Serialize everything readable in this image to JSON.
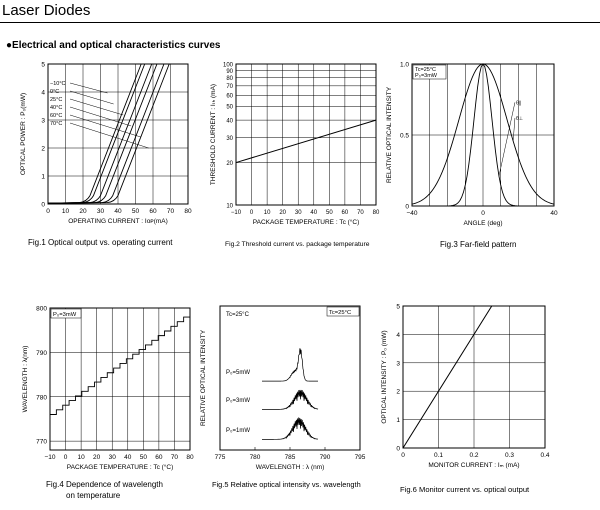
{
  "header": {
    "title": "Laser Diodes",
    "corner_text": "···"
  },
  "section_heading": "●Electrical and optical characteristics curves",
  "chart_data": [
    {
      "id": "fig1",
      "type": "line",
      "caption": "Fig.1 Optical output vs. operating current",
      "xlabel": "OPERATING CURRENT : Iᴏᴘ(mA)",
      "ylabel": "OPTICAL POWER : P₀(mW)",
      "xlim": [
        0,
        80
      ],
      "ylim": [
        0,
        5
      ],
      "xticks": [
        "0",
        "10",
        "20",
        "30",
        "40",
        "50",
        "60",
        "70",
        "80"
      ],
      "yticks": [
        "0",
        "1",
        "2",
        "3",
        "4",
        "5"
      ],
      "series": [
        {
          "name": "−10°C",
          "threshold": 22,
          "slope": 0.16
        },
        {
          "name": "0°C",
          "threshold": 24,
          "slope": 0.16
        },
        {
          "name": "25°C",
          "threshold": 28,
          "slope": 0.16
        },
        {
          "name": "40°C",
          "threshold": 31,
          "slope": 0.16
        },
        {
          "name": "60°C",
          "threshold": 35,
          "slope": 0.16
        },
        {
          "name": "70°C",
          "threshold": 38,
          "slope": 0.16
        }
      ]
    },
    {
      "id": "fig2",
      "type": "line",
      "caption": "Fig.2 Threshold current vs. package temperature",
      "xlabel": "PACKAGE TEMPERATURE : Tc (°C)",
      "ylabel": "THRESHOLD CURRENT : Iₜₕ (mA)",
      "xlim": [
        -10,
        80
      ],
      "ylim": [
        10,
        100
      ],
      "yscale": "log",
      "xticks": [
        "−10",
        "0",
        "10",
        "20",
        "30",
        "40",
        "50",
        "60",
        "70",
        "80"
      ],
      "yticks": [
        "10",
        "20",
        "30",
        "40",
        "50",
        "60",
        "70",
        "80",
        "90",
        "100"
      ],
      "series": [
        {
          "name": "Ith",
          "x": [
            -10,
            80
          ],
          "y": [
            20,
            40
          ]
        }
      ]
    },
    {
      "id": "fig3",
      "type": "line",
      "caption": "Fig.3 Far-field pattern",
      "xlabel": "ANGLE (deg)",
      "ylabel": "RELATIVE OPTICAL INTENSITY",
      "xlim": [
        -40,
        40
      ],
      "ylim": [
        0,
        1.0
      ],
      "xticks": [
        "−40",
        "0",
        "40"
      ],
      "yticks": [
        "0",
        "0.5",
        "1.0"
      ],
      "legend": [
        "Tc=25°C",
        "P₀=3mW"
      ],
      "series": [
        {
          "name": "θ∥",
          "fwhm": 12
        },
        {
          "name": "θ⊥",
          "fwhm": 32
        }
      ]
    },
    {
      "id": "fig4",
      "type": "line",
      "caption": "Fig.4 Dependence of wavelength on temperature",
      "caption_lines": [
        "Fig.4 Dependence of wavelength",
        "on temperature"
      ],
      "xlabel": "PACKAGE TEMPERATURE : Tc (°C)",
      "ylabel": "WAVELENGTH : λ(nm)",
      "xlim": [
        -10,
        80
      ],
      "ylim": [
        768,
        800
      ],
      "xticks": [
        "−10",
        "0",
        "10",
        "20",
        "30",
        "40",
        "50",
        "60",
        "70",
        "80"
      ],
      "yticks": [
        "770",
        "780",
        "790",
        "800"
      ],
      "legend": [
        "P₀=3mW"
      ],
      "series": [
        {
          "name": "λ",
          "x": [
            -10,
            80
          ],
          "y": [
            776,
            799
          ],
          "steps": 22
        }
      ]
    },
    {
      "id": "fig5",
      "type": "line",
      "caption": "Fig.5 Relative optical intensity vs. wavelength",
      "xlabel": "WAVELENGTH : λ (nm)",
      "ylabel": "RELATIVE OPTICAL INTENSITY",
      "xlim": [
        775,
        795
      ],
      "xticks": [
        "775",
        "780",
        "785",
        "790",
        "795"
      ],
      "legend": [
        "Tc=25°C"
      ],
      "header_label": "Tc=25°C",
      "series": [
        {
          "name": "P₀=5mW",
          "center": 786.5
        },
        {
          "name": "P₀=3mW",
          "center": 786.5
        },
        {
          "name": "P₀=1mW",
          "center": 786.3
        }
      ]
    },
    {
      "id": "fig6",
      "type": "line",
      "caption": "Fig.6 Monitor current vs. optical output",
      "xlabel": "MONITOR CURRENT : Iₘ (mA)",
      "ylabel": "OPTICAL INTENSITY : P₀ (mW)",
      "xlim": [
        0,
        0.4
      ],
      "ylim": [
        0,
        5
      ],
      "xticks": [
        "0",
        "0.1",
        "0.2",
        "0.3",
        "0.4"
      ],
      "yticks": [
        "0",
        "1",
        "2",
        "3",
        "4",
        "5"
      ],
      "series": [
        {
          "name": "Po",
          "x": [
            0,
            0.25
          ],
          "y": [
            0,
            5
          ]
        }
      ]
    }
  ]
}
